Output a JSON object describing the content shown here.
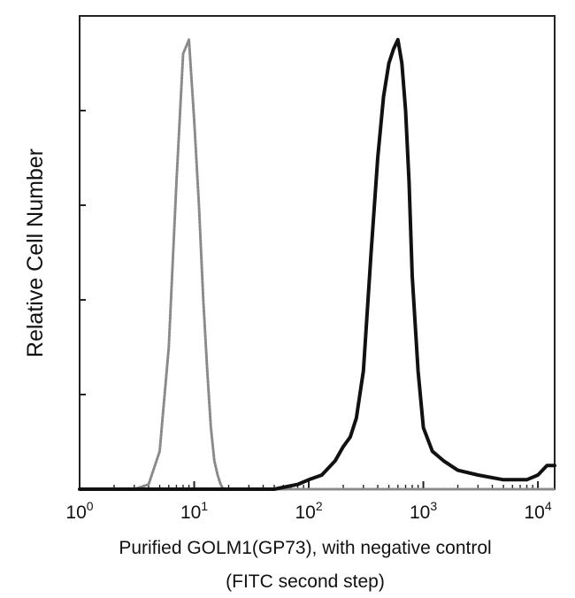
{
  "chart_data": {
    "type": "line",
    "title": "",
    "xlabel": "Purified GOLM1(GP73), with negative control",
    "xlabel_line2": "(FITC second step)",
    "ylabel": "Relative Cell Number",
    "x_scale": "log",
    "xlim": [
      1,
      14000
    ],
    "ylim": [
      0,
      100
    ],
    "x_ticks": [
      {
        "value": 1,
        "base": "10",
        "exp": "0"
      },
      {
        "value": 10,
        "base": "10",
        "exp": "1"
      },
      {
        "value": 100,
        "base": "10",
        "exp": "2"
      },
      {
        "value": 1000,
        "base": "10",
        "exp": "3"
      },
      {
        "value": 10000,
        "base": "10",
        "exp": "4"
      }
    ],
    "y_ticks": [
      0,
      20,
      40,
      60,
      80,
      100
    ],
    "grid": false,
    "legend": "none",
    "series": [
      {
        "role": "negative-control",
        "color": "#8a8a8a",
        "style": "dotted",
        "x": [
          1,
          2,
          3,
          4,
          5,
          6,
          7,
          8,
          9,
          10,
          11,
          12,
          13,
          14,
          15,
          16,
          17,
          18,
          20,
          25,
          40,
          100,
          1000,
          14000
        ],
        "y": [
          0,
          0,
          0,
          1,
          8,
          30,
          65,
          92,
          95,
          78,
          60,
          40,
          25,
          13,
          6,
          3,
          1,
          0,
          0,
          0,
          0,
          0,
          0,
          0
        ]
      },
      {
        "role": "GOLM1",
        "color": "#111111",
        "style": "solid",
        "x": [
          1,
          20,
          50,
          80,
          100,
          130,
          170,
          200,
          230,
          260,
          300,
          350,
          400,
          450,
          500,
          550,
          600,
          650,
          700,
          750,
          800,
          900,
          1000,
          1200,
          1500,
          2000,
          3000,
          5000,
          8000,
          10000,
          12000,
          14000
        ],
        "y": [
          0,
          0,
          0,
          1,
          2,
          3,
          6,
          9,
          11,
          15,
          25,
          50,
          70,
          83,
          90,
          93,
          95,
          90,
          80,
          65,
          45,
          25,
          13,
          8,
          6,
          4,
          3,
          2,
          2,
          3,
          5,
          5
        ]
      }
    ]
  }
}
